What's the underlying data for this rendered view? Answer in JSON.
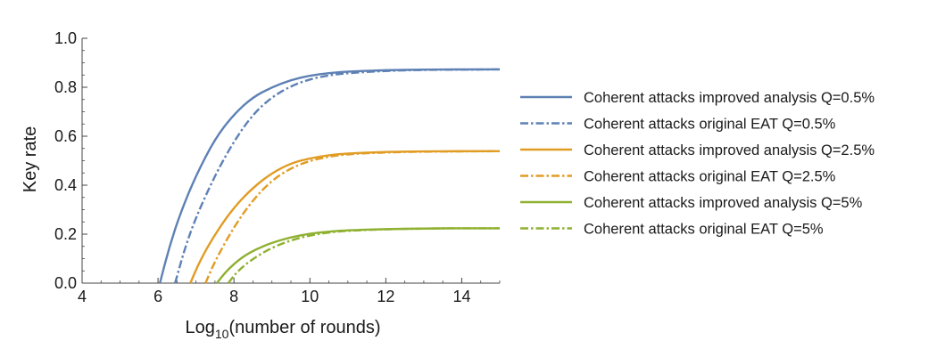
{
  "chart_data": {
    "type": "line",
    "xlabel": "Log",
    "xlabel_subscript": "10",
    "xlabel_rest": "(number of rounds)",
    "ylabel": "Key rate",
    "xlim": [
      4,
      15
    ],
    "ylim": [
      0,
      1
    ],
    "x_ticks": [
      4,
      6,
      8,
      10,
      12,
      14
    ],
    "y_ticks": [
      "0.0",
      "0.2",
      "0.4",
      "0.6",
      "0.8",
      "1.0"
    ],
    "grid": false,
    "legend_position": "right",
    "series": [
      {
        "name": "Coherent attacks improved analysis Q=0.5%",
        "color": "#5E81B5",
        "dash": "solid",
        "x": [
          6.05,
          6.3,
          6.6,
          7.0,
          7.5,
          8.0,
          8.5,
          9.0,
          9.5,
          10.0,
          10.5,
          11.0,
          12.0,
          13.0,
          14.0,
          15.0
        ],
        "y": [
          0.0,
          0.15,
          0.29,
          0.44,
          0.59,
          0.69,
          0.76,
          0.8,
          0.83,
          0.848,
          0.858,
          0.864,
          0.87,
          0.872,
          0.873,
          0.873
        ]
      },
      {
        "name": "Coherent attacks original EAT Q=0.5%",
        "color": "#5E81B5",
        "dash": "dashdot",
        "x": [
          6.45,
          6.7,
          7.0,
          7.5,
          8.0,
          8.5,
          9.0,
          9.5,
          10.0,
          10.5,
          11.0,
          12.0,
          13.0,
          14.0,
          15.0
        ],
        "y": [
          0.0,
          0.14,
          0.27,
          0.44,
          0.58,
          0.69,
          0.76,
          0.805,
          0.833,
          0.849,
          0.858,
          0.867,
          0.871,
          0.872,
          0.873
        ]
      },
      {
        "name": "Coherent attacks improved analysis Q=2.5%",
        "color": "#E19C24",
        "dash": "solid",
        "x": [
          6.85,
          7.1,
          7.5,
          8.0,
          8.5,
          9.0,
          9.5,
          10.0,
          10.5,
          11.0,
          12.0,
          13.0,
          14.0,
          15.0
        ],
        "y": [
          0.0,
          0.09,
          0.2,
          0.31,
          0.39,
          0.45,
          0.49,
          0.51,
          0.523,
          0.53,
          0.536,
          0.538,
          0.539,
          0.539
        ]
      },
      {
        "name": "Coherent attacks original EAT Q=2.5%",
        "color": "#E19C24",
        "dash": "dashdot",
        "x": [
          7.25,
          7.5,
          8.0,
          8.5,
          9.0,
          9.5,
          10.0,
          10.5,
          11.0,
          12.0,
          13.0,
          14.0,
          15.0
        ],
        "y": [
          0.0,
          0.09,
          0.23,
          0.34,
          0.42,
          0.47,
          0.5,
          0.517,
          0.527,
          0.534,
          0.537,
          0.538,
          0.539
        ]
      },
      {
        "name": "Coherent attacks improved analysis Q=5%",
        "color": "#8FB131",
        "dash": "solid",
        "x": [
          7.55,
          7.8,
          8.2,
          8.6,
          9.0,
          9.5,
          10.0,
          10.5,
          11.0,
          12.0,
          13.0,
          14.0,
          15.0
        ],
        "y": [
          0.0,
          0.05,
          0.105,
          0.14,
          0.165,
          0.188,
          0.202,
          0.211,
          0.216,
          0.221,
          0.223,
          0.224,
          0.224
        ]
      },
      {
        "name": "Coherent attacks original EAT Q=5%",
        "color": "#8FB131",
        "dash": "dashdot",
        "x": [
          7.85,
          8.1,
          8.5,
          9.0,
          9.5,
          10.0,
          10.5,
          11.0,
          12.0,
          13.0,
          14.0,
          15.0
        ],
        "y": [
          0.0,
          0.05,
          0.1,
          0.145,
          0.175,
          0.195,
          0.207,
          0.214,
          0.22,
          0.223,
          0.224,
          0.224
        ]
      }
    ]
  }
}
